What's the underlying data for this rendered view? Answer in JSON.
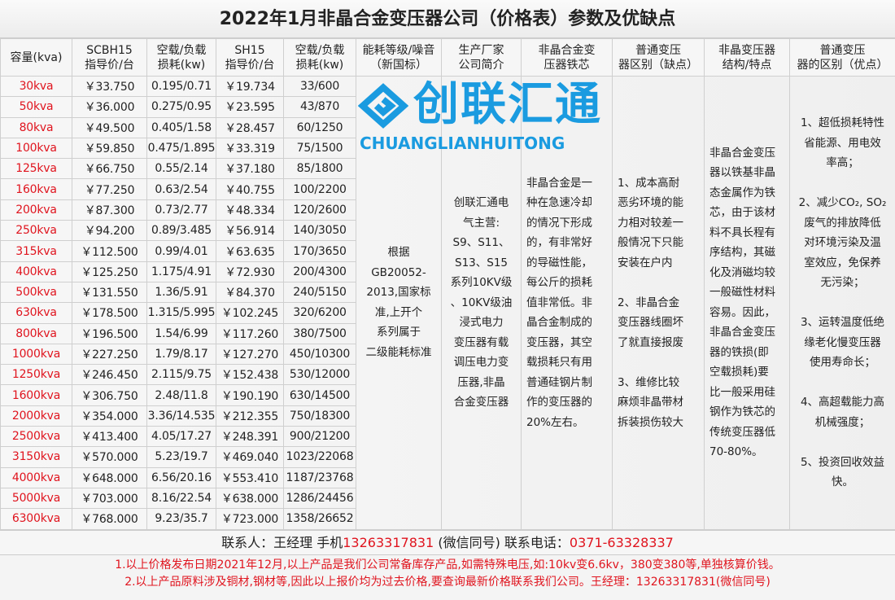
{
  "title": "2022年1月非晶合金变压器公司（价格表）参数及优缺点",
  "headers": [
    "容量(kva)",
    "SCBH15\n指导价/台",
    "空载/负载\n损耗(kw)",
    "SH15\n指导价/台",
    "空载/负载\n损耗(kw)",
    "能耗等级/噪音\n（新国标）",
    "生产厂家\n公司简介",
    "非晶合金变\n压器铁芯",
    "普通变压\n器区别（缺点）",
    "非晶变压器\n结构/特点",
    "普通变压\n器的区别（优点）"
  ],
  "rows": [
    [
      "30kva",
      "￥33.750",
      "0.195/0.71",
      "￥19.734",
      "33/600"
    ],
    [
      "50kva",
      "￥36.000",
      "0.275/0.95",
      "￥23.595",
      "43/870"
    ],
    [
      "80kva",
      "￥49.500",
      "0.405/1.58",
      "￥28.457",
      "60/1250"
    ],
    [
      "100kva",
      "￥59.850",
      "0.475/1.895",
      "￥33.319",
      "75/1500"
    ],
    [
      "125kva",
      "￥66.750",
      "0.55/2.14",
      "￥37.180",
      "85/1800"
    ],
    [
      "160kva",
      "￥77.250",
      "0.63/2.54",
      "￥40.755",
      "100/2200"
    ],
    [
      "200kva",
      "￥87.300",
      "0.73/2.77",
      "￥48.334",
      "120/2600"
    ],
    [
      "250kva",
      "￥94.200",
      "0.89/3.485",
      "￥56.914",
      "140/3050"
    ],
    [
      "315kva",
      "￥112.500",
      "0.99/4.01",
      "￥63.635",
      "170/3650"
    ],
    [
      "400kva",
      "￥125.250",
      "1.175/4.91",
      "￥72.930",
      "200/4300"
    ],
    [
      "500kva",
      "￥131.550",
      "1.36/5.91",
      "￥84.370",
      "240/5150"
    ],
    [
      "630kva",
      "￥178.500",
      "1.315/5.995",
      "￥102.245",
      "320/6200"
    ],
    [
      "800kva",
      "￥196.500",
      "1.54/6.99",
      "￥117.260",
      "380/7500"
    ],
    [
      "1000kva",
      "￥227.250",
      "1.79/8.17",
      "￥127.270",
      "450/10300"
    ],
    [
      "1250kva",
      "￥246.450",
      "2.115/9.75",
      "￥152.438",
      "530/12000"
    ],
    [
      "1600kva",
      "￥306.750",
      "2.48/11.8",
      "￥190.190",
      "630/14500"
    ],
    [
      "2000kva",
      "￥354.000",
      "3.36/14.535",
      "￥212.355",
      "750/18300"
    ],
    [
      "2500kva",
      "￥413.400",
      "4.05/17.27",
      "￥248.391",
      "900/21200"
    ],
    [
      "3150kva",
      "￥570.000",
      "5.23/19.7",
      "￥469.040",
      "1023/22068"
    ],
    [
      "4000kva",
      "￥648.000",
      "6.56/20.16",
      "￥553.410",
      "1187/23768"
    ],
    [
      "5000kva",
      "￥703.000",
      "8.16/22.54",
      "￥638.000",
      "1286/24456"
    ],
    [
      "6300kva",
      "￥768.000",
      "9.23/35.7",
      "￥723.000",
      "1358/26652"
    ]
  ],
  "text_columns": {
    "energy_grade": "根据\nGB20052-\n2013,国家标\n准,上开个\n系列属于\n二级能耗标准",
    "manufacturer": "创联汇通电\n气主营:\nS9、S11、\nS13、S15\n系列10KV级\n、10KV级油\n浸式电力\n变压器有载\n调压电力变\n压器,非晶\n合金变压器",
    "amorphous_core": "非晶合金是一\n种在急速冷却\n的情况下形成\n的，有非常好\n的导磁性能，\n每公斤的损耗\n值非常低。非\n晶合金制成的\n变压器，其空\n载损耗只有用\n普通硅钢片制\n作的变压器的\n20%左右。",
    "disadvantages": "1、成本高耐\n恶劣环境的能\n力相对较差一\n般情况下只能\n安装在户内\n\n2、非晶合金\n变压器线圈坏\n了就直接报废\n\n3、维修比较\n麻烦非晶带材\n拆装损伤较大",
    "structure": "非晶合金变压\n器以铁基非晶\n态金属作为铁\n芯，由于该材\n料不具长程有\n序结构，其磁\n化及消磁均较\n一般磁性材料\n容易。因此，\n非晶合金变压\n器的铁损(即\n空载损耗)要\n比一般采用硅\n钢作为铁芯的\n传统变压器低\n70-80%。",
    "advantages": "1、超低损耗特性\n省能源、用电效\n率高；\n\n2、减少CO₂, SO₂\n废气的排放降低\n对环境污染及温\n室效应，免保养\n无污染；\n\n3、运转温度低绝\n缘老化慢变压器\n使用寿命长；\n\n4、高超载能力高\n机械强度；\n\n5、投资回收效益\n快。"
  },
  "watermark": {
    "brand": "创联汇通",
    "pinyin": "CHUANGLIANHUITONG"
  },
  "contact": {
    "label_person": "联系人：王经理  手机",
    "mobile": "13263317831",
    "wechat": " (微信同号) 联系电话：",
    "phone": "0371-63328337"
  },
  "notes": [
    "1.以上价格发布日期2021年12月,以上产品是我们公司常备库存产品,如需特殊电压,如:10kv变6.6kv，380变380等,单独核算价钱。",
    "2.以上产品原料涉及铜材,钢材等,因此以上报价均为过去价格,要查询最新价格联系我们公司。王经理：13263317831(微信同号)"
  ],
  "colors": {
    "accent_red": "#e0141e",
    "watermark_blue": "#1a9be0"
  }
}
